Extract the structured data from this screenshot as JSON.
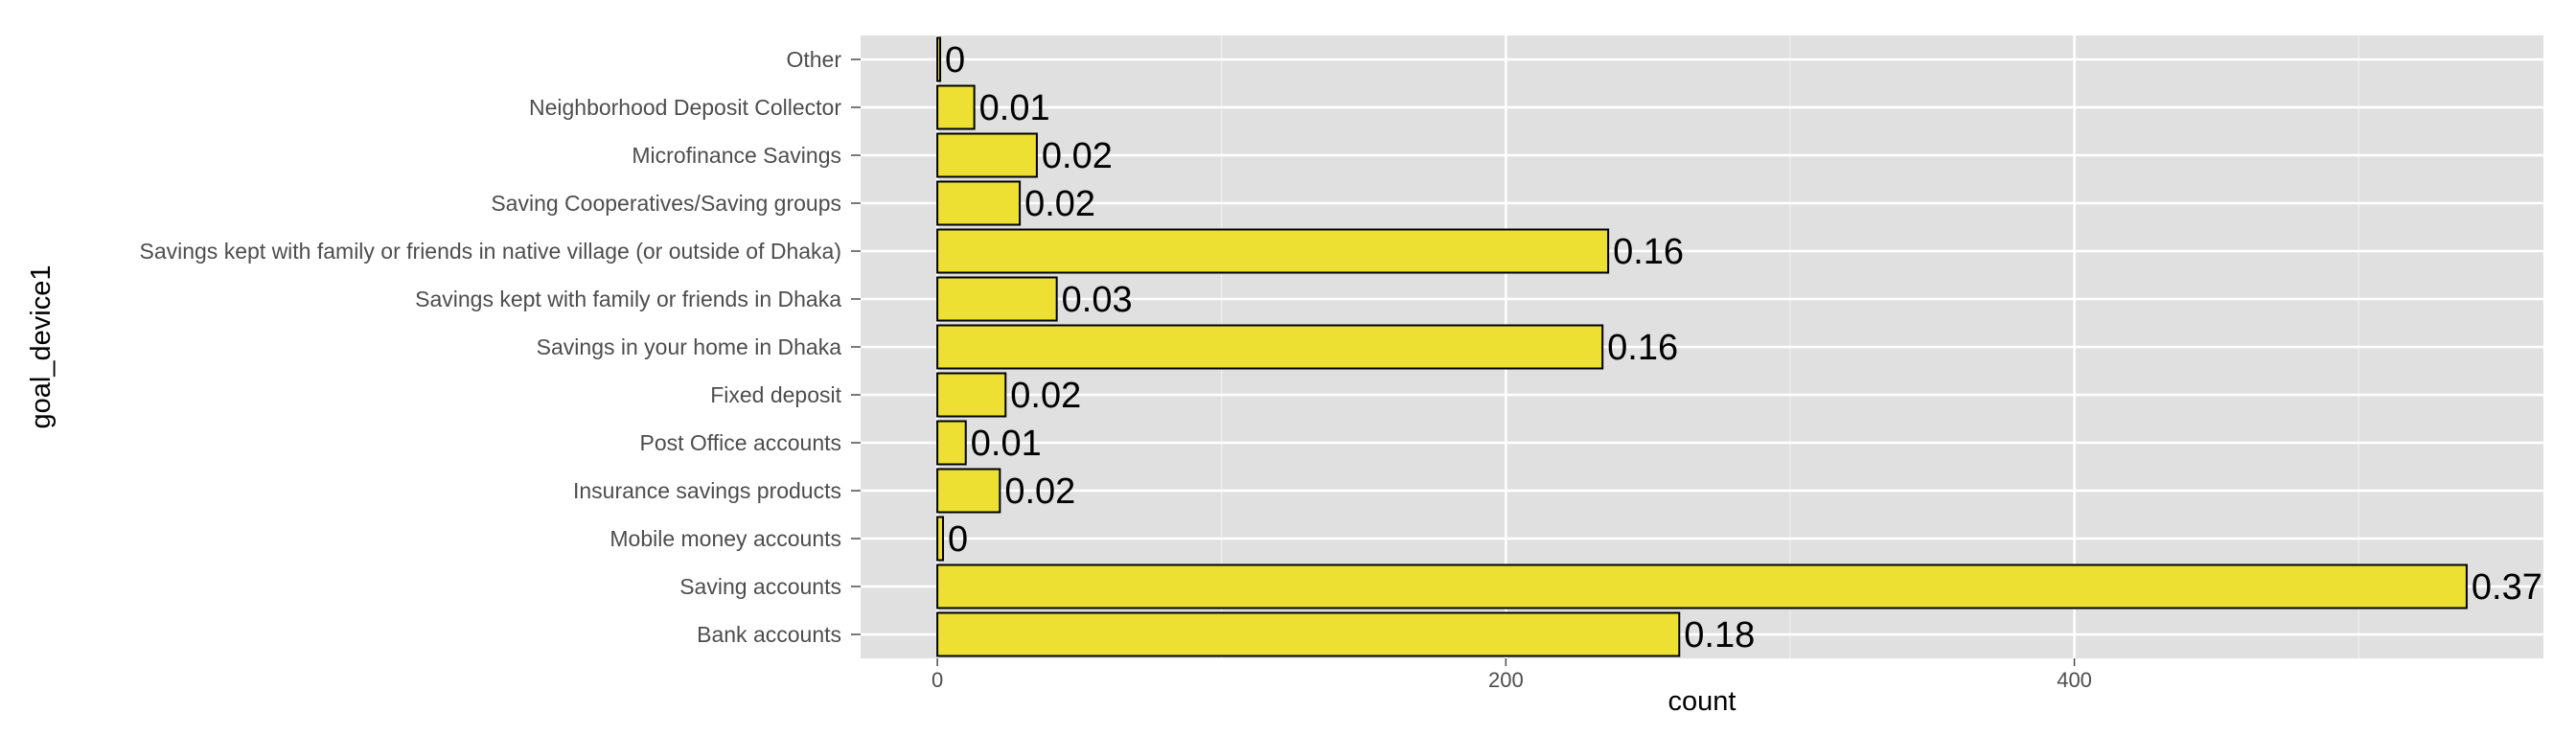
{
  "chart_data": {
    "type": "bar",
    "orientation": "horizontal",
    "xlabel": "count",
    "ylabel": "goal_device1",
    "xlim": [
      -27,
      565
    ],
    "x_ticks": [
      0,
      200,
      400
    ],
    "grid": true,
    "bar_fill": "#ede033",
    "bar_stroke": "#000000",
    "panel_background": "#e0e0e0",
    "gridline_color": "#ffffff",
    "categories": [
      "Other",
      "Neighborhood Deposit Collector",
      "Microfinance Savings",
      "Saving Cooperatives/Saving groups",
      "Savings kept with family or friends in native village (or outside of Dhaka)",
      "Savings kept with family or friends in Dhaka",
      "Savings in your home in Dhaka",
      "Fixed deposit",
      "Post Office accounts",
      "Insurance savings products",
      "Mobile money accounts",
      "Saving accounts",
      "Bank accounts"
    ],
    "values": [
      1,
      13,
      35,
      29,
      236,
      42,
      234,
      24,
      10,
      22,
      2,
      538,
      261
    ],
    "labels": [
      "0",
      "0.01",
      "0.02",
      "0.02",
      "0.16",
      "0.03",
      "0.16",
      "0.02",
      "0.01",
      "0.02",
      "0",
      "0.37",
      "0.18"
    ]
  }
}
